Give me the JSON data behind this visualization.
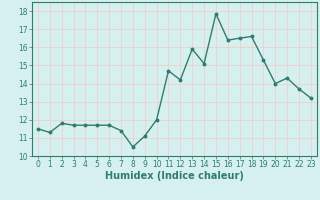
{
  "x": [
    0,
    1,
    2,
    3,
    4,
    5,
    6,
    7,
    8,
    9,
    10,
    11,
    12,
    13,
    14,
    15,
    16,
    17,
    18,
    19,
    20,
    21,
    22,
    23
  ],
  "y": [
    11.5,
    11.3,
    11.8,
    11.7,
    11.7,
    11.7,
    11.7,
    11.4,
    10.5,
    11.1,
    12.0,
    14.7,
    14.2,
    15.9,
    15.1,
    17.85,
    16.4,
    16.5,
    16.6,
    15.3,
    14.0,
    14.3,
    13.7,
    13.2
  ],
  "line_color": "#2e7d6e",
  "marker": "o",
  "markersize": 1.8,
  "linewidth": 1.0,
  "xlabel": "Humidex (Indice chaleur)",
  "ylim": [
    10,
    18.5
  ],
  "xlim": [
    -0.5,
    23.5
  ],
  "yticks": [
    10,
    11,
    12,
    13,
    14,
    15,
    16,
    17,
    18
  ],
  "xticks": [
    0,
    1,
    2,
    3,
    4,
    5,
    6,
    7,
    8,
    9,
    10,
    11,
    12,
    13,
    14,
    15,
    16,
    17,
    18,
    19,
    20,
    21,
    22,
    23
  ],
  "bg_color": "#d6f0f0",
  "grid_color": "#f5c8c8",
  "tick_label_fontsize": 5.5,
  "xlabel_fontsize": 7
}
